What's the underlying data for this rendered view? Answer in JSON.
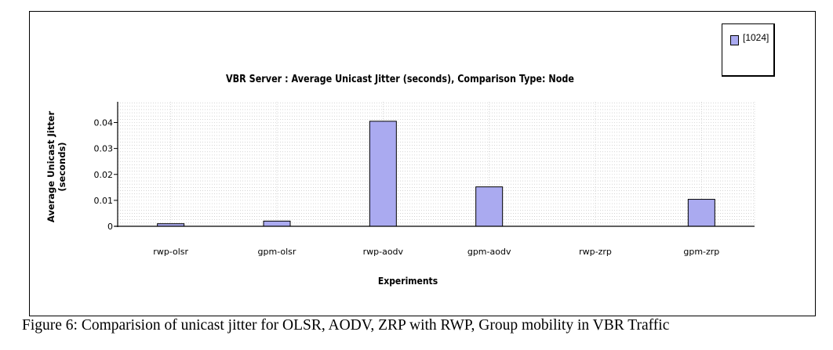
{
  "chart_data": {
    "type": "bar",
    "title": "VBR Server :  Average Unicast Jitter (seconds), Comparison Type: Node",
    "xlabel": "Experiments",
    "ylabel": "Average Unicast Jitter\n(seconds)",
    "categories": [
      "rwp-olsr",
      "gpm-olsr",
      "rwp-aodv",
      "gpm-aodv",
      "rwp-zrp",
      "gpm-zrp"
    ],
    "series": [
      {
        "name": "[1024]",
        "values": [
          0.001,
          0.002,
          0.0405,
          0.0152,
          0.0,
          0.0104
        ],
        "color": "#aaaaf0"
      }
    ],
    "y_ticks": [
      0,
      0.01,
      0.02,
      0.03,
      0.04
    ],
    "y_tick_labels": [
      "0",
      "0.01",
      "0.02",
      "0.03",
      "0.04"
    ],
    "ylim": [
      0,
      0.048
    ],
    "grid": true,
    "legend_position": "top-right"
  },
  "caption": "Figure 6: Comparision of  unicast  jitter for OLSR, AODV, ZRP with RWP, Group mobility in VBR Traffic"
}
